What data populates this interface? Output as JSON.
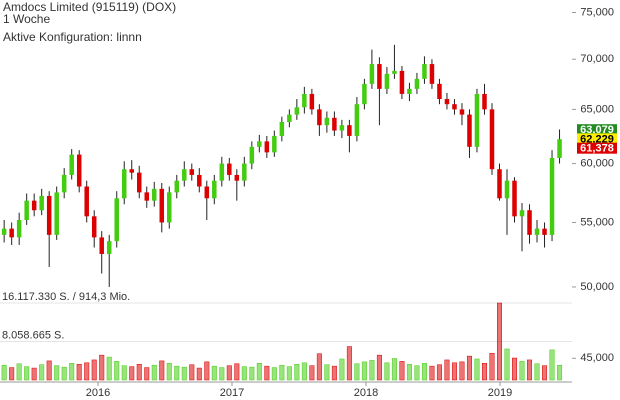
{
  "chart_data": {
    "type": "candlestick",
    "title": "Amdocs Limited (915119) (DOX)",
    "subtitle": "1 Woche",
    "annotation": "Aktive Konfiguration: linnn",
    "x": [
      2015.3,
      2015.356,
      2015.412,
      2015.468,
      2015.524,
      2015.58,
      2015.636,
      2015.692,
      2015.748,
      2015.804,
      2015.86,
      2015.916,
      2015.972,
      2016.028,
      2016.084,
      2016.14,
      2016.196,
      2016.252,
      2016.308,
      2016.364,
      2016.42,
      2016.476,
      2016.532,
      2016.588,
      2016.644,
      2016.7,
      2016.756,
      2016.812,
      2016.868,
      2016.924,
      2016.98,
      2017.036,
      2017.092,
      2017.148,
      2017.204,
      2017.26,
      2017.316,
      2017.372,
      2017.428,
      2017.484,
      2017.54,
      2017.596,
      2017.652,
      2017.708,
      2017.764,
      2017.82,
      2017.876,
      2017.932,
      2017.988,
      2018.044,
      2018.1,
      2018.156,
      2018.212,
      2018.268,
      2018.324,
      2018.38,
      2018.436,
      2018.492,
      2018.548,
      2018.604,
      2018.66,
      2018.716,
      2018.772,
      2018.828,
      2018.884,
      2018.94,
      2018.996,
      2019.052,
      2019.108,
      2019.164,
      2019.22,
      2019.276,
      2019.332,
      2019.388,
      2019.444
    ],
    "xlim": [
      2015.269,
      2019.537
    ],
    "xticks": [
      2016,
      2017,
      2018,
      2019
    ],
    "open": [
      54.0,
      54.5,
      53.8,
      55.2,
      56.8,
      56.0,
      57.2,
      54.0,
      57.5,
      59.0,
      60.8,
      58.0,
      55.5,
      53.8,
      52.5,
      53.5,
      57.0,
      59.5,
      59.2,
      57.5,
      56.8,
      57.8,
      55.0,
      57.5,
      58.5,
      59.5,
      59.0,
      58.0,
      57.0,
      58.5,
      60.0,
      59.0,
      58.5,
      60.0,
      61.5,
      62.0,
      61.0,
      62.5,
      63.8,
      64.5,
      65.2,
      66.5,
      65.0,
      63.5,
      64.2,
      63.0,
      63.5,
      62.5,
      65.5,
      67.5,
      69.5,
      67.0,
      68.5,
      68.8,
      66.5,
      67.0,
      68.0,
      69.5,
      67.5,
      66.0,
      65.5,
      65.0,
      64.5,
      61.5,
      66.5,
      65.0,
      59.5,
      57.0,
      58.5,
      55.5,
      56.0,
      54.0,
      54.5,
      54.0,
      60.5
    ],
    "high": [
      55.2,
      55.0,
      55.8,
      57.4,
      57.4,
      57.8,
      57.6,
      58.0,
      59.6,
      61.3,
      61.2,
      58.5,
      56.0,
      54.3,
      54.0,
      57.6,
      60.2,
      60.3,
      59.8,
      58.0,
      58.4,
      58.3,
      58.0,
      59.0,
      60.2,
      60.0,
      59.6,
      58.5,
      59.0,
      60.6,
      60.5,
      59.5,
      60.6,
      62.0,
      62.6,
      62.5,
      63.0,
      64.3,
      65.0,
      66.0,
      67.2,
      67.0,
      65.5,
      64.8,
      64.8,
      64.0,
      64.0,
      66.2,
      68.0,
      71.0,
      70.2,
      69.2,
      71.5,
      69.3,
      67.6,
      68.6,
      70.3,
      70.0,
      68.0,
      66.6,
      66.0,
      65.6,
      65.0,
      67.0,
      67.5,
      65.6,
      60.0,
      59.5,
      58.8,
      56.6,
      56.5,
      55.2,
      55.0,
      61.2,
      63.1
    ],
    "low": [
      53.4,
      53.2,
      53.2,
      54.8,
      55.5,
      55.6,
      51.5,
      53.6,
      57.0,
      58.6,
      57.5,
      55.0,
      53.0,
      51.0,
      50.0,
      53.0,
      56.5,
      58.6,
      57.0,
      56.2,
      56.3,
      54.2,
      54.5,
      57.0,
      58.0,
      58.5,
      57.5,
      55.2,
      56.5,
      58.0,
      58.5,
      56.8,
      58.0,
      59.5,
      61.0,
      60.5,
      60.6,
      62.0,
      63.3,
      64.0,
      64.6,
      64.5,
      62.5,
      62.8,
      62.5,
      62.3,
      61.0,
      62.0,
      65.0,
      67.0,
      63.5,
      66.5,
      68.0,
      66.0,
      65.8,
      66.5,
      67.5,
      67.0,
      65.5,
      65.0,
      64.5,
      63.5,
      60.5,
      61.0,
      64.5,
      59.0,
      56.8,
      54.0,
      55.0,
      52.7,
      53.3,
      53.4,
      53.0,
      53.5,
      60.0
    ],
    "close": [
      54.5,
      53.8,
      55.2,
      56.8,
      56.0,
      57.2,
      54.0,
      57.5,
      59.0,
      60.8,
      58.0,
      55.5,
      53.8,
      52.5,
      53.5,
      57.0,
      59.5,
      59.2,
      57.5,
      56.8,
      57.8,
      55.0,
      57.5,
      58.5,
      59.5,
      59.0,
      58.0,
      57.0,
      58.5,
      60.0,
      59.0,
      58.5,
      60.0,
      61.5,
      62.0,
      61.0,
      62.5,
      63.8,
      64.5,
      65.2,
      66.5,
      65.0,
      63.5,
      64.2,
      63.0,
      63.5,
      62.5,
      65.5,
      67.5,
      69.5,
      67.0,
      68.5,
      68.8,
      66.5,
      67.0,
      68.0,
      69.5,
      67.5,
      66.0,
      65.5,
      65.0,
      64.5,
      61.5,
      66.5,
      65.0,
      59.5,
      57.0,
      58.5,
      55.5,
      56.0,
      54.0,
      54.5,
      54.0,
      60.5,
      62.2
    ],
    "volume": [
      3100000,
      2600000,
      3400000,
      2800000,
      2500000,
      3200000,
      4000000,
      3000000,
      2700000,
      3500000,
      3300000,
      3600000,
      4200000,
      5200000,
      4800000,
      3900000,
      3000000,
      2800000,
      3300000,
      2600000,
      3100000,
      4000000,
      3500000,
      2900000,
      2700000,
      3200000,
      2500000,
      3800000,
      2900000,
      2600000,
      3000000,
      3400000,
      2800000,
      2700000,
      3500000,
      2900000,
      2600000,
      3100000,
      2800000,
      3300000,
      3600000,
      3000000,
      5500000,
      3200000,
      2900000,
      4400000,
      7000000,
      3400000,
      3800000,
      4100000,
      5200000,
      3600000,
      4500000,
      3900000,
      3300000,
      3000000,
      3500000,
      2900000,
      3200000,
      4200000,
      3600000,
      3800000,
      5000000,
      4400000,
      3500000,
      5600000,
      16117330,
      6500000,
      4600000,
      3900000,
      4200000,
      3400000,
      3000000,
      6300000,
      3100000
    ],
    "up_color": "#44cc11",
    "down_color": "#dd0000",
    "ylim": [
      43.45,
      76.4
    ],
    "log_y": true,
    "yticks": [
      {
        "value": 45,
        "label": "45,000"
      },
      {
        "value": 50,
        "label": "50,000"
      },
      {
        "value": 55,
        "label": "55,000"
      },
      {
        "value": 60,
        "label": "60,000"
      },
      {
        "value": 65,
        "label": "65,000"
      },
      {
        "value": 70,
        "label": "70,000"
      },
      {
        "value": 75,
        "label": "75,000"
      }
    ],
    "volume_ylim": [
      0,
      16117330
    ],
    "volume_ticks": [
      {
        "value": 16117330,
        "label": "16.117.330 S. / 914,3 Mio."
      },
      {
        "value": 8058665,
        "label": "8.058.665 S."
      }
    ],
    "last_labels": [
      {
        "value": 63.079,
        "label": "63,079",
        "color": "#228b22"
      },
      {
        "value": 62.229,
        "label": "62,229",
        "color": "#ffee00"
      },
      {
        "value": 61.378,
        "label": "61,378",
        "color": "#dd0000"
      }
    ]
  }
}
